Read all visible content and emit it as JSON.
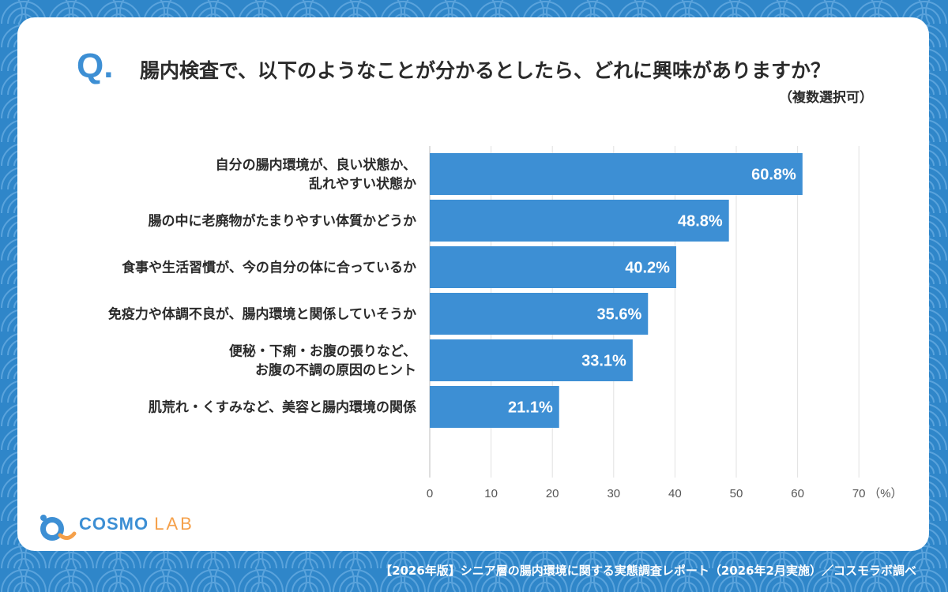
{
  "question": {
    "mark": "Q",
    "mark_dot": ".",
    "text": "腸内検査で、以下のようなことが分かるとしたら、どれに興味がありますか？",
    "note": "（複数選択可）"
  },
  "chart_data": {
    "type": "bar",
    "orientation": "horizontal",
    "categories": [
      [
        "自分の腸内環境が、良い状態か、",
        "乱れやすい状態か"
      ],
      [
        "腸の中に老廃物がたまりやすい体質かどうか"
      ],
      [
        "食事や生活習慣が、今の自分の体に合っているか"
      ],
      [
        "免疫力や体調不良が、腸内環境と関係していそうか"
      ],
      [
        "便秘・下痢・お腹の張りなど、",
        "お腹の不調の原因のヒント"
      ],
      [
        "肌荒れ・くすみなど、美容と腸内環境の関係"
      ]
    ],
    "values": [
      60.8,
      48.8,
      40.2,
      35.6,
      33.1,
      21.1
    ],
    "value_labels": [
      "60.8%",
      "48.8%",
      "40.2%",
      "35.6%",
      "33.1%",
      "21.1%"
    ],
    "xlim": [
      0,
      70
    ],
    "ticks": [
      0,
      10,
      20,
      30,
      40,
      50,
      60,
      70
    ],
    "unit_label": "（%）",
    "grid": true,
    "bar_color": "#3d8fd4"
  },
  "logo": {
    "main": "COSMO",
    "sub": "LAB"
  },
  "footer": "【2026年版】シニア層の腸内環境に関する実態調査レポート（2026年2月実施）／コスモラボ調べ",
  "colors": {
    "background": "#2f86c9",
    "accent": "#3d8fd4",
    "logo_accent": "#f5a04a"
  }
}
